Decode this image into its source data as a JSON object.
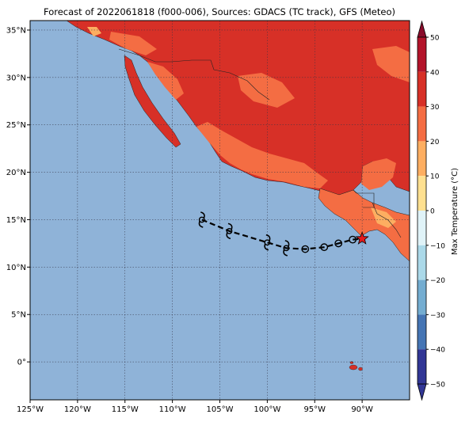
{
  "title": "Forecast of 2022061818 (f000-006), Sources: GDACS (TC track), GFS (Meteo)",
  "map": {
    "lon_range": [
      -125,
      -85
    ],
    "lat_range": [
      -4,
      36
    ],
    "lon_ticks": [
      {
        "value": -125,
        "label": "125°W"
      },
      {
        "value": -120,
        "label": "120°W"
      },
      {
        "value": -115,
        "label": "115°W"
      },
      {
        "value": -110,
        "label": "110°W"
      },
      {
        "value": -105,
        "label": "105°W"
      },
      {
        "value": -100,
        "label": "100°W"
      },
      {
        "value": -95,
        "label": "95°W"
      },
      {
        "value": -90,
        "label": "90°W"
      }
    ],
    "lat_ticks": [
      {
        "value": 35,
        "label": "35°N"
      },
      {
        "value": 30,
        "label": "30°N"
      },
      {
        "value": 25,
        "label": "25°N"
      },
      {
        "value": 20,
        "label": "20°N"
      },
      {
        "value": 15,
        "label": "15°N"
      },
      {
        "value": 10,
        "label": "10°N"
      },
      {
        "value": 5,
        "label": "5°N"
      },
      {
        "value": 0,
        "label": "0°"
      }
    ],
    "grid": "dotted",
    "ocean_color": "#8fb3d8"
  },
  "track": {
    "points": [
      {
        "lon": -106.9,
        "lat": 15.0,
        "type": "cyclone-symbol"
      },
      {
        "lon": -104.0,
        "lat": 13.8,
        "type": "cyclone-symbol"
      },
      {
        "lon": -100.0,
        "lat": 12.6,
        "type": "cyclone-symbol"
      },
      {
        "lon": -98.0,
        "lat": 12.0,
        "type": "cyclone-symbol"
      },
      {
        "lon": -96.0,
        "lat": 11.9,
        "type": "circle"
      },
      {
        "lon": -94.0,
        "lat": 12.1,
        "type": "circle"
      },
      {
        "lon": -92.5,
        "lat": 12.5,
        "type": "circle"
      },
      {
        "lon": -91.0,
        "lat": 12.9,
        "type": "circle"
      },
      {
        "lon": -90.0,
        "lat": 13.0,
        "type": "star"
      }
    ]
  },
  "colorbar": {
    "label": "Max Temperature (°C)",
    "ticks": [
      "50",
      "40",
      "30",
      "20",
      "10",
      "0",
      "−10",
      "−20",
      "−30",
      "−40",
      "−50"
    ],
    "colors": [
      "#8a0c2b",
      "#b3142a",
      "#d73027",
      "#f46d43",
      "#fdae61",
      "#fee090",
      "#e0f3f8",
      "#abd9e9",
      "#74add1",
      "#4575b4",
      "#313695"
    ]
  }
}
